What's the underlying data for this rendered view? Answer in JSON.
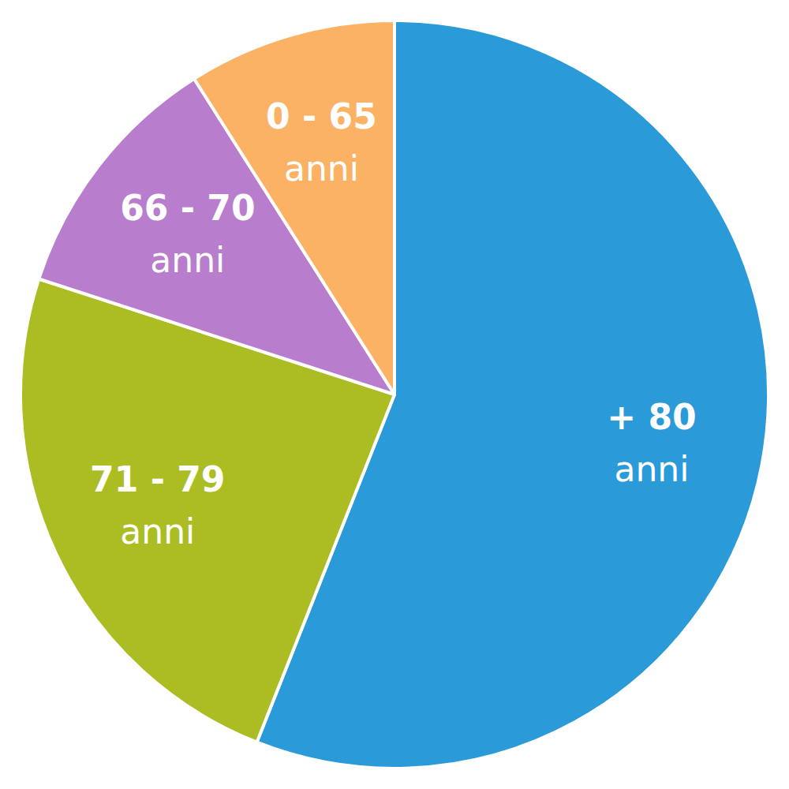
{
  "chart_data": {
    "type": "pie",
    "categories": [
      "+ 80 anni",
      "71 - 79 anni",
      "66 - 70 anni",
      "0 - 65 anni"
    ],
    "values": [
      56,
      24,
      11,
      9
    ],
    "colors": [
      "#2a9ad9",
      "#acbd24",
      "#b87ecd",
      "#fbb265"
    ]
  }
}
